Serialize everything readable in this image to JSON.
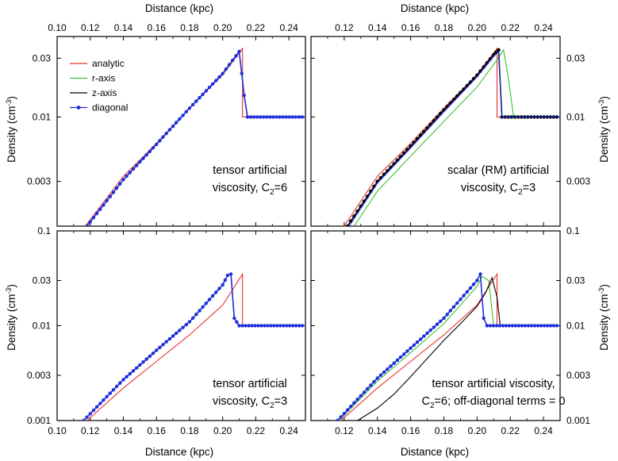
{
  "figure": {
    "top_xlabel": "Distance (kpc)",
    "bottom_xlabel": "Distance (kpc)",
    "ylabel_prefix": "Density (cm",
    "ylabel_exp": "-3",
    "ylabel_suffix": ")"
  },
  "chart_data": [
    {
      "type": "line",
      "panel": "top-left",
      "annotation": [
        "tensor artificial",
        "viscosity, C2=6"
      ],
      "xlim": [
        0.1,
        0.25
      ],
      "ylim": [
        0.0013,
        0.045
      ],
      "yscale": "log",
      "xticks": [
        "0.10",
        "0.12",
        "0.14",
        "0.16",
        "0.18",
        "0.20",
        "0.22",
        "0.24"
      ],
      "yticks": [
        "0.003",
        "0.01",
        "0.03"
      ],
      "legend": [
        "analytic",
        "r-axis",
        "z-axis",
        "diagonal"
      ],
      "series": [
        {
          "name": "analytic",
          "color": "#e8302c",
          "x": [
            0.117,
            0.14,
            0.16,
            0.18,
            0.2,
            0.212,
            0.212,
            0.25
          ],
          "y": [
            0.0013,
            0.0033,
            0.0061,
            0.0118,
            0.0221,
            0.036,
            0.01,
            0.01
          ]
        },
        {
          "name": "r-axis",
          "color": "#3bbf3b",
          "x": [
            0.118,
            0.14,
            0.16,
            0.18,
            0.2,
            0.21,
            0.213,
            0.215,
            0.25
          ],
          "y": [
            0.0013,
            0.0031,
            0.006,
            0.0118,
            0.0225,
            0.034,
            0.015,
            0.01,
            0.01
          ]
        },
        {
          "name": "z-axis",
          "color": "#000000",
          "x": [
            0.118,
            0.14,
            0.16,
            0.18,
            0.2,
            0.21,
            0.213,
            0.215,
            0.25
          ],
          "y": [
            0.0013,
            0.0031,
            0.006,
            0.0118,
            0.0225,
            0.034,
            0.015,
            0.01,
            0.01
          ]
        },
        {
          "name": "diagonal",
          "color": "#1f2fd8",
          "markers": true,
          "x": [
            0.118,
            0.14,
            0.16,
            0.18,
            0.2,
            0.21,
            0.213,
            0.215,
            0.25
          ],
          "y": [
            0.0013,
            0.0031,
            0.006,
            0.0118,
            0.0225,
            0.034,
            0.015,
            0.01,
            0.01
          ]
        }
      ]
    },
    {
      "type": "line",
      "panel": "top-right",
      "annotation": [
        "scalar (RM) artificial",
        "viscosity, C2=3"
      ],
      "xlim": [
        0.1,
        0.25
      ],
      "ylim": [
        0.0013,
        0.045
      ],
      "yscale": "log",
      "xticks": [
        "0.12",
        "0.14",
        "0.16",
        "0.18",
        "0.20",
        "0.22",
        "0.24"
      ],
      "yticks": [
        "0.003",
        "0.01",
        "0.03"
      ],
      "series": [
        {
          "name": "analytic",
          "color": "#e8302c",
          "x": [
            0.12,
            0.14,
            0.16,
            0.18,
            0.2,
            0.212,
            0.212,
            0.25
          ],
          "y": [
            0.0013,
            0.0033,
            0.0061,
            0.0118,
            0.0221,
            0.036,
            0.01,
            0.01
          ]
        },
        {
          "name": "r-axis",
          "color": "#3bbf3b",
          "x": [
            0.126,
            0.14,
            0.16,
            0.18,
            0.2,
            0.212,
            0.216,
            0.219,
            0.222,
            0.25
          ],
          "y": [
            0.0013,
            0.0025,
            0.0048,
            0.0092,
            0.0175,
            0.029,
            0.035,
            0.02,
            0.01,
            0.01
          ]
        },
        {
          "name": "z-axis",
          "color": "#000000",
          "markers": true,
          "x": [
            0.122,
            0.14,
            0.16,
            0.18,
            0.2,
            0.21,
            0.213,
            0.215,
            0.25
          ],
          "y": [
            0.0013,
            0.003,
            0.0058,
            0.0114,
            0.0218,
            0.032,
            0.035,
            0.01,
            0.01
          ]
        },
        {
          "name": "diagonal",
          "color": "#1f2fd8",
          "x": [
            0.123,
            0.14,
            0.16,
            0.18,
            0.2,
            0.21,
            0.213,
            0.215,
            0.25
          ],
          "y": [
            0.0013,
            0.0029,
            0.0056,
            0.011,
            0.0212,
            0.031,
            0.034,
            0.01,
            0.01
          ]
        }
      ]
    },
    {
      "type": "line",
      "panel": "bottom-left",
      "annotation": [
        "tensor artificial",
        "viscosity, C2=3"
      ],
      "xlim": [
        0.1,
        0.25
      ],
      "ylim": [
        0.001,
        0.1
      ],
      "yscale": "log",
      "xticks": [
        "0.10",
        "0.12",
        "0.14",
        "0.16",
        "0.18",
        "0.20",
        "0.22",
        "0.24"
      ],
      "yticks": [
        "0.001",
        "0.003",
        "0.01",
        "0.03",
        "0.1"
      ],
      "series": [
        {
          "name": "analytic",
          "color": "#e8302c",
          "x": [
            0.118,
            0.14,
            0.16,
            0.18,
            0.2,
            0.212,
            0.212,
            0.25
          ],
          "y": [
            0.001,
            0.0022,
            0.0042,
            0.008,
            0.0165,
            0.035,
            0.01,
            0.01
          ]
        },
        {
          "name": "r-axis",
          "color": "#3bbf3b",
          "x": [
            0.116,
            0.14,
            0.16,
            0.18,
            0.2,
            0.203,
            0.205,
            0.207,
            0.21,
            0.25
          ],
          "y": [
            0.001,
            0.0027,
            0.0055,
            0.011,
            0.027,
            0.034,
            0.035,
            0.012,
            0.01,
            0.01
          ]
        },
        {
          "name": "z-axis",
          "color": "#000000",
          "x": [
            0.116,
            0.14,
            0.16,
            0.18,
            0.2,
            0.203,
            0.205,
            0.207,
            0.21,
            0.25
          ],
          "y": [
            0.001,
            0.0027,
            0.0055,
            0.011,
            0.027,
            0.034,
            0.035,
            0.012,
            0.01,
            0.01
          ]
        },
        {
          "name": "diagonal",
          "color": "#1f2fd8",
          "markers": true,
          "x": [
            0.116,
            0.14,
            0.16,
            0.18,
            0.2,
            0.203,
            0.205,
            0.207,
            0.21,
            0.25
          ],
          "y": [
            0.001,
            0.0027,
            0.0055,
            0.011,
            0.027,
            0.034,
            0.035,
            0.012,
            0.01,
            0.01
          ]
        }
      ]
    },
    {
      "type": "line",
      "panel": "bottom-right",
      "annotation": [
        "tensor artificial viscosity,",
        "C2=6; off-diagonal terms = 0"
      ],
      "xlim": [
        0.1,
        0.25
      ],
      "ylim": [
        0.001,
        0.1
      ],
      "yscale": "log",
      "xticks": [
        "0.12",
        "0.14",
        "0.16",
        "0.18",
        "0.20",
        "0.22",
        "0.24"
      ],
      "yticks": [
        "0.001",
        "0.003",
        "0.01",
        "0.03",
        "0.1"
      ],
      "series": [
        {
          "name": "analytic",
          "color": "#e8302c",
          "x": [
            0.118,
            0.14,
            0.16,
            0.18,
            0.2,
            0.212,
            0.212,
            0.25
          ],
          "y": [
            0.001,
            0.0022,
            0.0042,
            0.008,
            0.0165,
            0.035,
            0.01,
            0.01
          ]
        },
        {
          "name": "r-axis",
          "color": "#3bbf3b",
          "x": [
            0.117,
            0.14,
            0.16,
            0.18,
            0.2,
            0.203,
            0.207,
            0.21,
            0.25
          ],
          "y": [
            0.001,
            0.0026,
            0.0052,
            0.0105,
            0.026,
            0.033,
            0.03,
            0.01,
            0.01
          ]
        },
        {
          "name": "z-axis",
          "color": "#000000",
          "x": [
            0.128,
            0.14,
            0.15,
            0.16,
            0.17,
            0.18,
            0.19,
            0.2,
            0.205,
            0.209,
            0.212,
            0.214,
            0.25
          ],
          "y": [
            0.001,
            0.00135,
            0.0019,
            0.0029,
            0.0045,
            0.007,
            0.0105,
            0.016,
            0.022,
            0.032,
            0.02,
            0.01,
            0.01
          ]
        },
        {
          "name": "diagonal",
          "color": "#1f2fd8",
          "markers": true,
          "x": [
            0.116,
            0.14,
            0.16,
            0.18,
            0.2,
            0.202,
            0.204,
            0.206,
            0.25
          ],
          "y": [
            0.001,
            0.0028,
            0.0058,
            0.012,
            0.03,
            0.035,
            0.012,
            0.01,
            0.01
          ]
        }
      ]
    }
  ]
}
